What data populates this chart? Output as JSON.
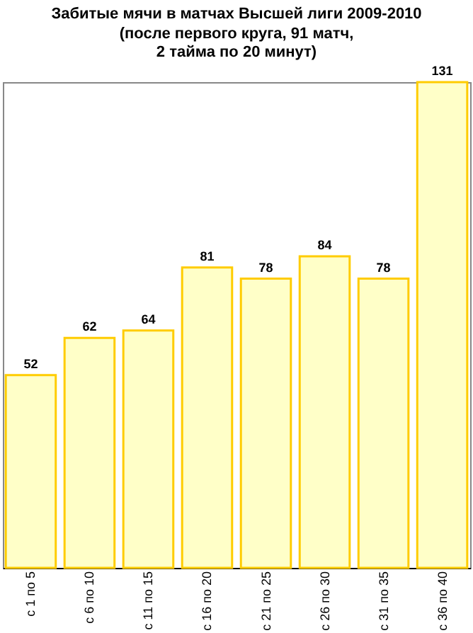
{
  "chart_data": {
    "type": "bar",
    "title": "Забитые мячи в матчах Высшей лиги 2009-2010",
    "subtitle": [
      "(после первого круга, 91 матч,",
      "2 тайма по 20 минут)"
    ],
    "categories": [
      "с 1 по 5",
      "с 6 по 10",
      "с 11 по 15",
      "с 16 по 20",
      "с 21 по 25",
      "с 26 по 30",
      "с 31 по 35",
      "с 36 по 40"
    ],
    "values": [
      52,
      62,
      64,
      81,
      78,
      84,
      78,
      131
    ],
    "color": "#ffffc8",
    "data_labels": true,
    "grid": false
  }
}
